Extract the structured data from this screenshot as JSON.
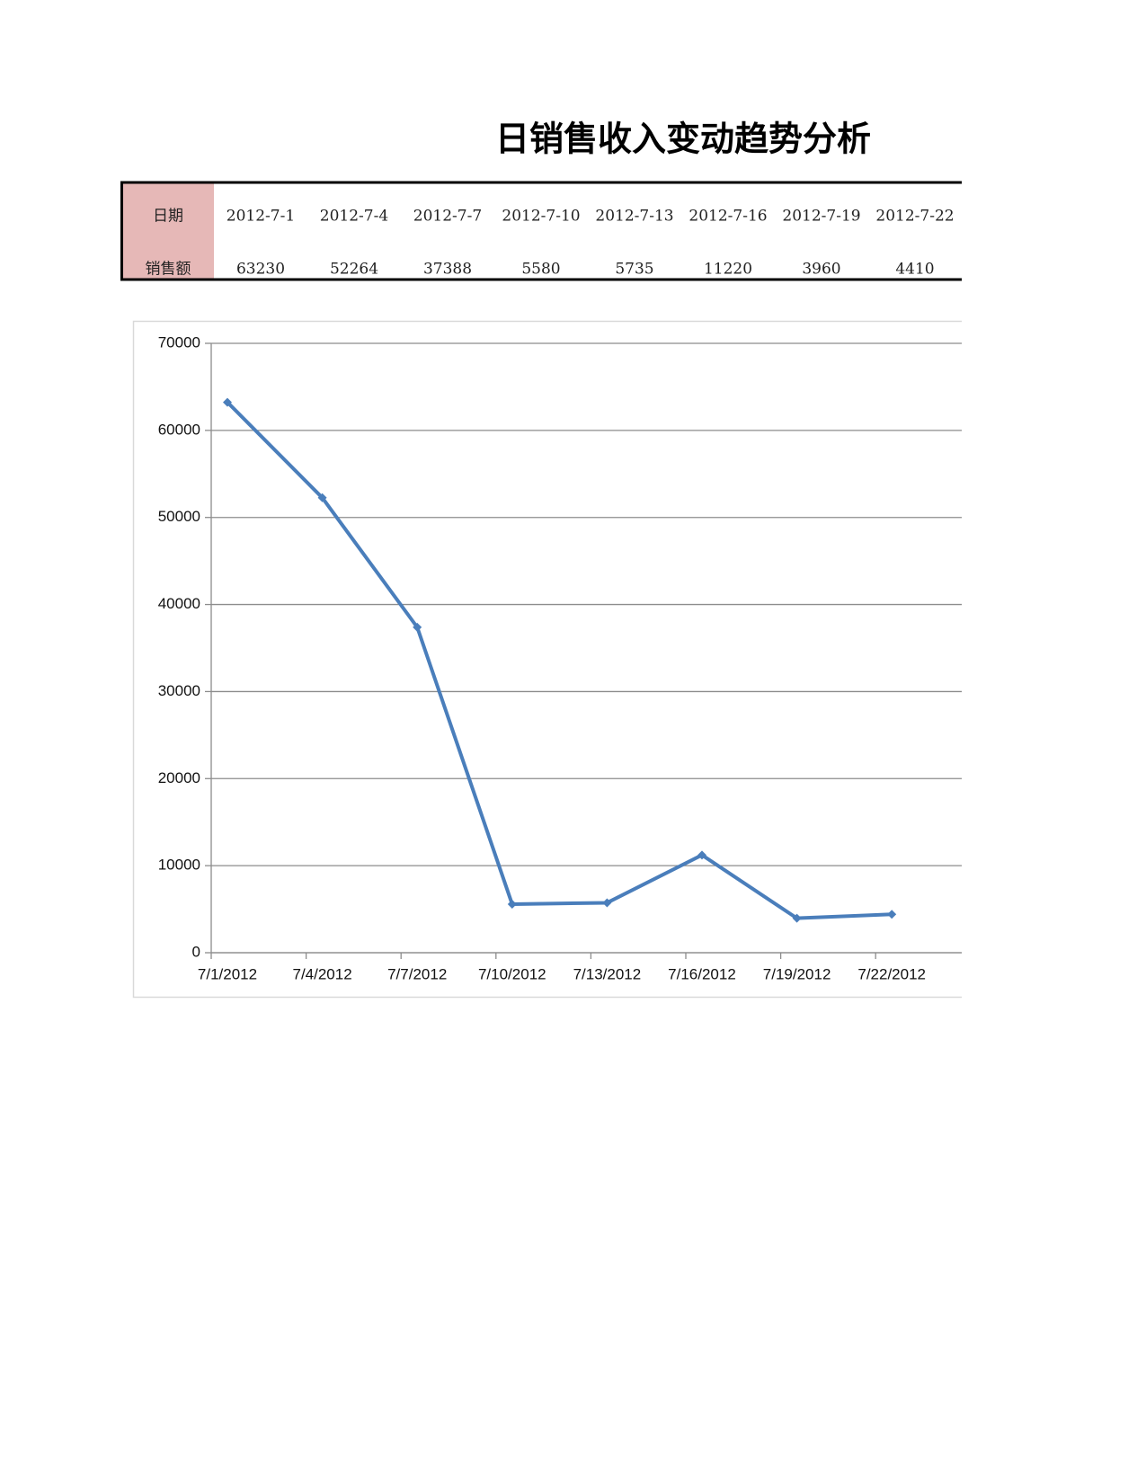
{
  "title": "日销售收入变动趋势分析",
  "table": {
    "rows": [
      [
        "日期",
        "2012-7-1",
        "2012-7-4",
        "2012-7-7",
        "2012-7-10",
        "2012-7-13",
        "2012-7-16",
        "2012-7-19",
        "2012-7-22"
      ],
      [
        "销售额",
        "63230",
        "52264",
        "37388",
        "5580",
        "5735",
        "11220",
        "3960",
        "4410"
      ]
    ]
  },
  "chart_data": {
    "type": "line",
    "categories": [
      "7/1/2012",
      "7/4/2012",
      "7/7/2012",
      "7/10/2012",
      "7/13/2012",
      "7/16/2012",
      "7/19/2012",
      "7/22/2012"
    ],
    "values": [
      63230,
      52264,
      37388,
      5580,
      5735,
      11220,
      3960,
      4410
    ],
    "color": "#4a7ebb",
    "ylim": [
      0,
      70000
    ],
    "yticks": [
      0,
      10000,
      20000,
      30000,
      40000,
      50000,
      60000,
      70000
    ],
    "grid": true
  }
}
